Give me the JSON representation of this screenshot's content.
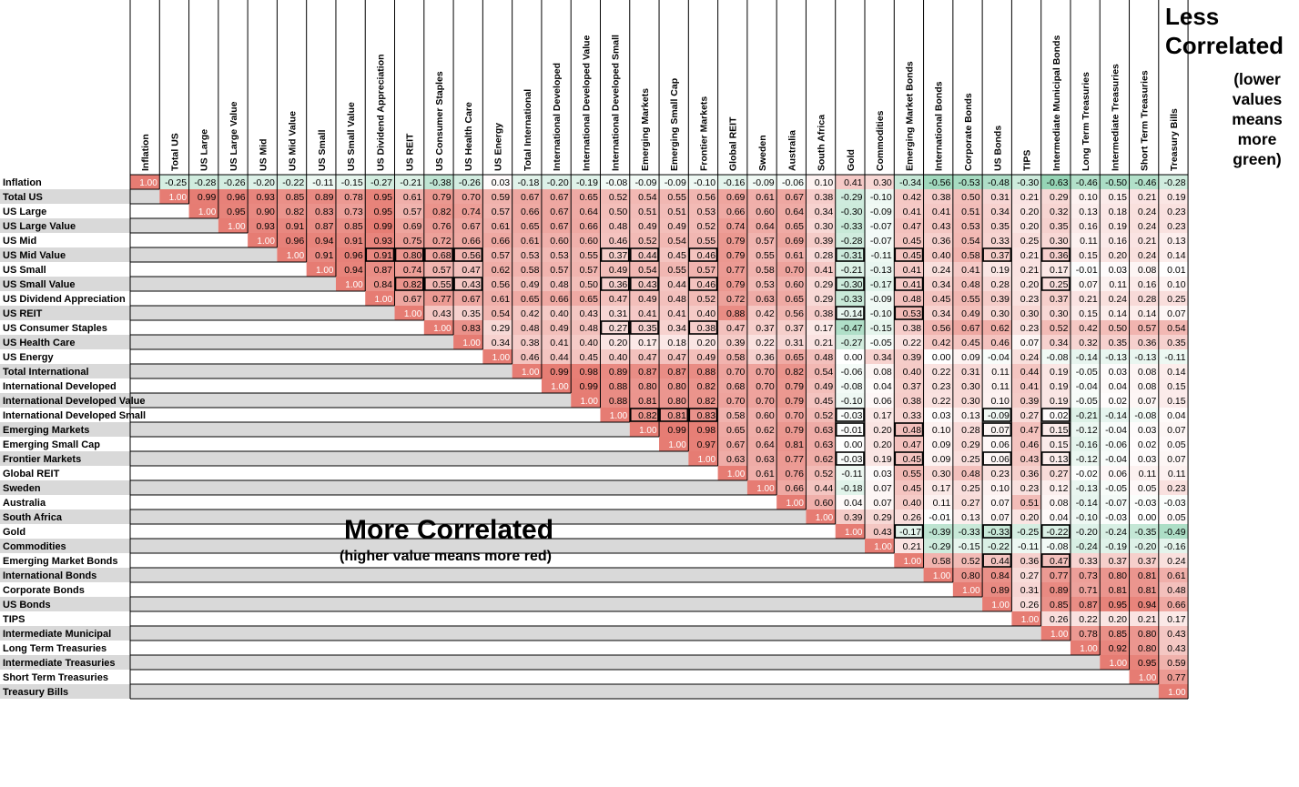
{
  "chart_data": {
    "type": "heatmap",
    "title": "",
    "xlabel": "",
    "ylabel": "",
    "assets": [
      "Inflation",
      "Total US",
      "US Large",
      "US Large Value",
      "US Mid",
      "US Mid Value",
      "US Small",
      "US Small Value",
      "US Dividend Appreciation",
      "US REIT",
      "US Consumer Staples",
      "US Health Care",
      "US Energy",
      "Total International",
      "International Developed",
      "International Developed Value",
      "International Developed Small",
      "Emerging Markets",
      "Emerging Small Cap",
      "Frontier Markets",
      "Global REIT",
      "Sweden",
      "Australia",
      "South Africa",
      "Gold",
      "Commodities",
      "Emerging Market Bonds",
      "International Bonds",
      "Corporate Bonds",
      "US Bonds",
      "TIPS",
      "Intermediate Municipal",
      "Long Term Treasuries",
      "Intermediate Treasuries",
      "Short Term Treasuries",
      "Treasury Bills"
    ],
    "column_labels": [
      "Inflation",
      "Total US",
      "US Large",
      "US Large Value",
      "US Mid",
      "US Mid Value",
      "US Small",
      "US Small Value",
      "US Dividend Appreciation",
      "US REIT",
      "US Consumer Staples",
      "US Health Care",
      "US Energy",
      "Total International",
      "International Developed",
      "International Developed Value",
      "International Developed Small",
      "Emerging Markets",
      "Emerging Small Cap",
      "Frontier Markets",
      "Global REIT",
      "Sweden",
      "Australia",
      "South Africa",
      "Gold",
      "Commodities",
      "Emerging Market Bonds",
      "International Bonds",
      "Corporate Bonds",
      "US Bonds",
      "TIPS",
      "Intermediate Municipal Bonds",
      "Long Term Treasuries",
      "Intermediate Treasuries",
      "Short Term Treasuries",
      "Treasury Bills"
    ],
    "rows": [
      "1.00 -0.25 -0.28 -0.26 -0.20 -0.22 -0.11 -0.15 -0.27 -0.21 -0.38 -0.26 0.03 -0.18 -0.20 -0.19 -0.08 -0.09 -0.09 -0.10 -0.16 -0.09 -0.06 0.10 0.41 0.30 -0.34 -0.56 -0.53 -0.48 -0.30 -0.63 -0.46 -0.50 -0.46 -0.28",
      "1.00 0.99 0.96 0.93 0.85 0.89 0.78 0.95 0.61 0.79 0.70 0.59 0.67 0.67 0.65 0.52 0.54 0.55 0.56 0.69 0.61 0.67 0.38 -0.29 -0.10 0.42 0.38 0.50 0.31 0.21 0.29 0.10 0.15 0.21 0.19",
      "1.00 0.95 0.90 0.82 0.83 0.73 0.95 0.57 0.82 0.74 0.57 0.66 0.67 0.64 0.50 0.51 0.51 0.53 0.66 0.60 0.64 0.34 -0.30 -0.09 0.41 0.41 0.51 0.34 0.20 0.32 0.13 0.18 0.24 0.23",
      "1.00 0.93 0.91 0.87 0.85 0.99 0.69 0.76 0.67 0.61 0.65 0.67 0.66 0.48 0.49 0.49 0.52 0.74 0.64 0.65 0.30 -0.33 -0.07 0.47 0.43 0.53 0.35 0.20 0.35 0.16 0.19 0.24 0.23",
      "1.00 0.96 0.94 0.91 0.93 0.75 0.72 0.66 0.66 0.61 0.60 0.60 0.46 0.52 0.54 0.55 0.79 0.57 0.69 0.39 -0.28 -0.07 0.45 0.36 0.54 0.33 0.25 0.30 0.11 0.16 0.21 0.13",
      "1.00 0.91 0.96 0.91 0.80 0.68 0.56 0.57 0.53 0.53 0.55 0.37 0.44 0.45 0.46 0.79 0.55 0.61 0.28 -0.31 -0.11 0.45 0.40 0.58 0.37 0.21 0.36 0.15 0.20 0.24 0.14",
      "1.00 0.94 0.87 0.74 0.57 0.47 0.62 0.58 0.57 0.57 0.49 0.54 0.55 0.57 0.77 0.58 0.70 0.41 -0.21 -0.13 0.41 0.24 0.41 0.19 0.21 0.17 -0.01 0.03 0.08 0.01",
      "1.00 0.84 0.82 0.55 0.43 0.56 0.49 0.48 0.50 0.36 0.43 0.44 0.46 0.79 0.53 0.60 0.29 -0.30 -0.17 0.41 0.34 0.48 0.28 0.20 0.25 0.07 0.11 0.16 0.10",
      "1.00 0.67 0.77 0.67 0.61 0.65 0.66 0.65 0.47 0.49 0.48 0.52 0.72 0.63 0.65 0.29 -0.33 -0.09 0.48 0.45 0.55 0.39 0.23 0.37 0.21 0.24 0.28 0.25",
      "1.00 0.43 0.35 0.54 0.42 0.40 0.43 0.31 0.41 0.41 0.40 0.88 0.42 0.56 0.38 -0.14 -0.10 0.53 0.34 0.49 0.30 0.30 0.30 0.15 0.14 0.14 0.07",
      "1.00 0.83 0.29 0.48 0.49 0.48 0.27 0.35 0.34 0.38 0.47 0.37 0.37 0.17 -0.47 -0.15 0.38 0.56 0.67 0.62 0.23 0.52 0.42 0.50 0.57 0.54",
      "1.00 0.34 0.38 0.41 0.40 0.20 0.17 0.18 0.20 0.39 0.22 0.31 0.21 -0.27 -0.05 0.22 0.42 0.45 0.46 0.07 0.34 0.32 0.35 0.36 0.35",
      "1.00 0.46 0.44 0.45 0.40 0.47 0.47 0.49 0.58 0.36 0.65 0.48 0.00 0.34 0.39 0.00 0.09 -0.04 0.24 -0.08 -0.14 -0.13 -0.13 -0.11",
      "1.00 0.99 0.98 0.89 0.87 0.87 0.88 0.70 0.70 0.82 0.54 -0.06 0.08 0.40 0.22 0.31 0.11 0.44 0.19 -0.05 0.03 0.08 0.14",
      "1.00 0.99 0.88 0.80 0.80 0.82 0.68 0.70 0.79 0.49 -0.08 0.04 0.37 0.23 0.30 0.11 0.41 0.19 -0.04 0.04 0.08 0.15",
      "1.00 0.88 0.81 0.80 0.82 0.70 0.70 0.79 0.45 -0.10 0.06 0.38 0.22 0.30 0.10 0.39 0.19 -0.05 0.02 0.07 0.15",
      "1.00 0.82 0.81 0.83 0.58 0.60 0.70 0.52 -0.03 0.17 0.33 0.03 0.13 -0.09 0.27 0.02 -0.21 -0.14 -0.08 0.04",
      "1.00 0.99 0.98 0.65 0.62 0.79 0.63 -0.01 0.20 0.48 0.10 0.28 0.07 0.47 0.15 -0.12 -0.04 0.03 0.07",
      "1.00 0.97 0.67 0.64 0.81 0.63 0.00 0.20 0.47 0.09 0.29 0.06 0.46 0.15 -0.16 -0.06 0.02 0.05",
      "1.00 0.63 0.63 0.77 0.62 -0.03 0.19 0.45 0.09 0.25 0.06 0.43 0.13 -0.12 -0.04 0.03 0.07",
      "1.00 0.61 0.76 0.52 -0.11 0.03 0.55 0.30 0.48 0.23 0.36 0.27 -0.02 0.06 0.11 0.11",
      "1.00 0.66 0.44 -0.18 0.07 0.45 0.17 0.25 0.10 0.23 0.12 -0.13 -0.05 0.05 0.23",
      "1.00 0.60 0.04 0.07 0.40 0.11 0.27 0.07 0.51 0.08 -0.14 -0.07 -0.03 -0.03",
      "1.00 0.39 0.29 0.26 -0.01 0.13 0.07 0.20 0.04 -0.10 -0.03 0.00 0.05",
      "1.00 0.43 -0.17 -0.39 -0.33 -0.33 -0.25 -0.22 -0.20 -0.24 -0.35 -0.49",
      "1.00 0.21 -0.29 -0.15 -0.22 -0.11 -0.08 -0.24 -0.19 -0.20 -0.16",
      "1.00 0.58 0.52 0.44 0.36 0.47 0.33 0.37 0.37 0.24",
      "1.00 0.80 0.84 0.27 0.77 0.73 0.80 0.81 0.61",
      "1.00 0.89 0.31 0.89 0.71 0.81 0.81 0.48",
      "1.00 0.26 0.85 0.87 0.95 0.94 0.66",
      "1.00 0.26 0.22 0.20 0.21 0.17",
      "1.00 0.78 0.85 0.80 0.43",
      "1.00 0.92 0.80 0.43",
      "1.00 0.95 0.59",
      "1.00 0.77",
      "1.00"
    ],
    "boxed_cells": [
      [
        5,
        8
      ],
      [
        5,
        9
      ],
      [
        5,
        10
      ],
      [
        5,
        11
      ],
      [
        5,
        16
      ],
      [
        5,
        17
      ],
      [
        5,
        19
      ],
      [
        5,
        24
      ],
      [
        5,
        26
      ],
      [
        5,
        29
      ],
      [
        5,
        31
      ],
      [
        7,
        9
      ],
      [
        7,
        10
      ],
      [
        7,
        11
      ],
      [
        7,
        16
      ],
      [
        7,
        17
      ],
      [
        7,
        19
      ],
      [
        7,
        24
      ],
      [
        7,
        26
      ],
      [
        7,
        31
      ],
      [
        9,
        24
      ],
      [
        9,
        26
      ],
      [
        10,
        16
      ],
      [
        10,
        17
      ],
      [
        10,
        19
      ],
      [
        16,
        17
      ],
      [
        16,
        18
      ],
      [
        16,
        19
      ],
      [
        16,
        24
      ],
      [
        16,
        29
      ],
      [
        16,
        31
      ],
      [
        17,
        24
      ],
      [
        17,
        26
      ],
      [
        17,
        29
      ],
      [
        17,
        31
      ],
      [
        19,
        24
      ],
      [
        19,
        26
      ],
      [
        19,
        29
      ],
      [
        19,
        31
      ],
      [
        24,
        26
      ],
      [
        24,
        29
      ],
      [
        24,
        31
      ],
      [
        26,
        29
      ],
      [
        26,
        31
      ]
    ],
    "color_scale": {
      "low": "#57bb8a",
      "mid": "#ffffff",
      "high": "#e67c73",
      "min": -1,
      "max": 1
    },
    "grid": true,
    "legend": "none"
  },
  "annotations": {
    "less_title": "Less Correlated",
    "less_sub": "(lower values means more green)",
    "more_title": "More Correlated",
    "more_sub": "(higher value means more red)"
  }
}
